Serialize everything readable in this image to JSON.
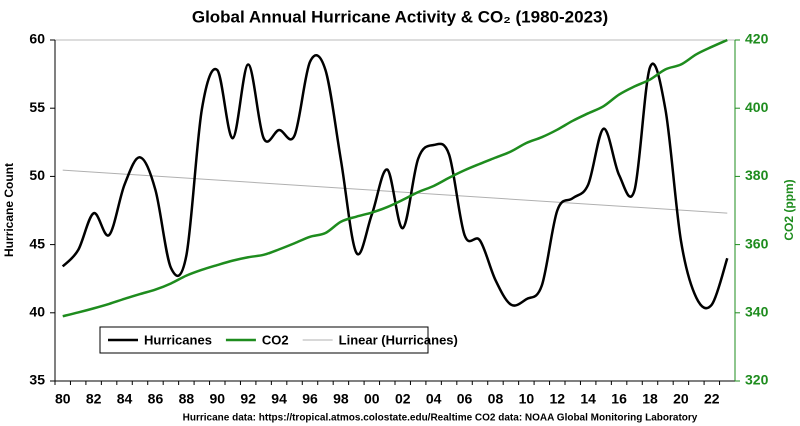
{
  "chart_data": {
    "type": "line",
    "title": "Global Annual Hurricane Activity & CO₂ (1980-2023)",
    "source": "Hurricane data: https://tropical.atmos.colostate.edu/Realtime    CO2 data: NOAA Global Monitoring Laboratory",
    "ylabel": "Hurricane Count",
    "y2label": "CO2 (ppm)",
    "categories": [
      "80",
      null,
      "82",
      null,
      "84",
      null,
      "86",
      null,
      "88",
      null,
      "90",
      null,
      "92",
      null,
      "94",
      null,
      "96",
      null,
      "98",
      null,
      "00",
      null,
      "02",
      null,
      "04",
      null,
      "06",
      null,
      "08",
      null,
      "10",
      null,
      "12",
      null,
      "14",
      null,
      "16",
      null,
      "18",
      null,
      "20",
      null,
      "22",
      null
    ],
    "series": [
      {
        "name": "Hurricanes",
        "color": "#000000",
        "values": [
          43.4,
          44.6,
          47.3,
          45.7,
          49.4,
          51.4,
          49.0,
          43.3,
          44.2,
          54.9,
          57.8,
          52.8,
          58.2,
          52.8,
          53.4,
          53.0,
          58.4,
          57.8,
          51.2,
          44.4,
          47.2,
          50.5,
          46.2,
          51.3,
          52.3,
          51.6,
          45.7,
          45.3,
          42.4,
          40.6,
          41.0,
          42.0,
          47.5,
          48.4,
          49.4,
          53.5,
          50.1,
          49.0,
          58.0,
          54.9,
          45.3,
          41.1,
          40.6,
          44.0
        ]
      },
      {
        "name": "CO2",
        "color": "#1e8c1e",
        "axis": "y2",
        "values": [
          339.0,
          340.1,
          341.3,
          342.6,
          344.1,
          345.5,
          346.8,
          348.6,
          350.9,
          352.6,
          354.0,
          355.3,
          356.3,
          357.0,
          358.6,
          360.4,
          362.3,
          363.4,
          366.7,
          368.2,
          369.4,
          371.0,
          373.1,
          375.4,
          377.2,
          379.6,
          381.8,
          383.7,
          385.5,
          387.3,
          389.8,
          391.5,
          393.7,
          396.3,
          398.5,
          400.6,
          404.0,
          406.4,
          408.4,
          411.4,
          412.8,
          415.8,
          418.0,
          420.0
        ]
      },
      {
        "name": "Linear (Hurricanes)",
        "color": "#b0b0b0",
        "trend_of": "Hurricanes"
      }
    ],
    "ylim": [
      35,
      60
    ],
    "yticks": [
      35,
      40,
      45,
      50,
      55,
      60
    ],
    "y2lim": [
      320,
      420
    ],
    "y2ticks": [
      320,
      340,
      360,
      380,
      400,
      420
    ],
    "legend": "lower left"
  }
}
